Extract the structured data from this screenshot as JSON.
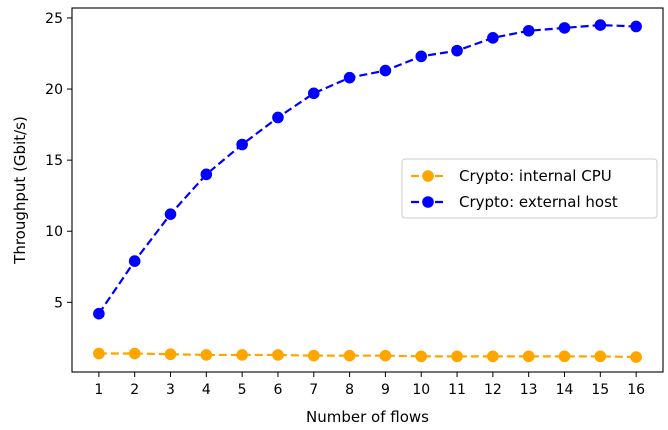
{
  "chart_data": {
    "type": "line",
    "title": "",
    "xlabel": "Number of flows",
    "ylabel": "Throughput (Gbit/s)",
    "x": [
      1,
      2,
      3,
      4,
      5,
      6,
      7,
      8,
      9,
      10,
      11,
      12,
      13,
      14,
      15,
      16
    ],
    "xlim": [
      0.25,
      16.75
    ],
    "ylim": [
      0.1,
      25.7
    ],
    "yticks": [
      5,
      10,
      15,
      20,
      25
    ],
    "grid": false,
    "legend_position": "center-right",
    "series": [
      {
        "name": "Crypto: internal CPU",
        "color": "#ffa500",
        "line_style": "dashed",
        "marker": "circle",
        "values": [
          1.4,
          1.4,
          1.35,
          1.3,
          1.3,
          1.3,
          1.25,
          1.25,
          1.25,
          1.2,
          1.2,
          1.2,
          1.2,
          1.2,
          1.2,
          1.15
        ]
      },
      {
        "name": "Crypto: external host",
        "color": "#0000ff",
        "line_style": "dashed",
        "marker": "circle",
        "values": [
          4.2,
          7.9,
          11.2,
          14.0,
          16.1,
          18.0,
          19.7,
          20.8,
          21.3,
          22.3,
          22.7,
          23.6,
          24.1,
          24.3,
          24.5,
          24.4
        ]
      }
    ]
  }
}
